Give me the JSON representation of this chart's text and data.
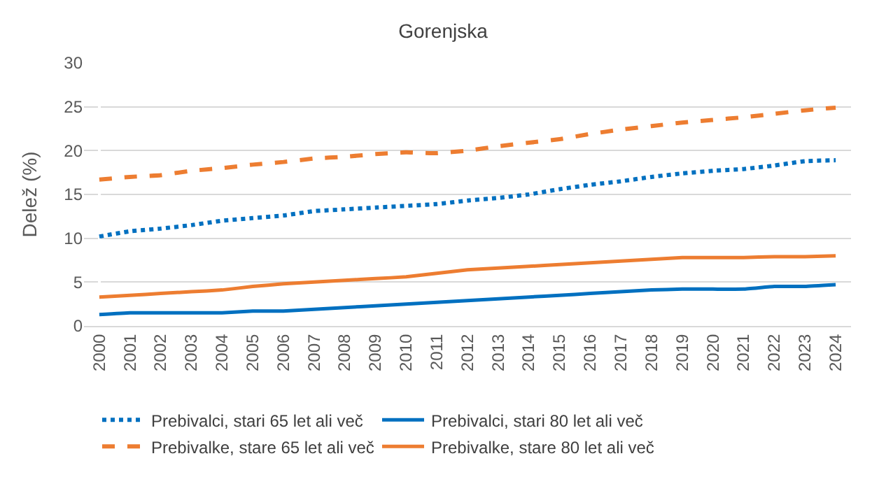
{
  "chart_data": {
    "type": "line",
    "title": "Gorenjska",
    "ylabel": "Delež (%)",
    "categories": [
      "2000",
      "2001",
      "2002",
      "2003",
      "2004",
      "2005",
      "2006",
      "2007",
      "2008",
      "2009",
      "2010",
      "2011",
      "2012",
      "2013",
      "2014",
      "2015",
      "2016",
      "2017",
      "2018",
      "2019",
      "2020",
      "2021",
      "2022",
      "2023",
      "2024"
    ],
    "ylim": [
      0,
      30
    ],
    "yticks": [
      0,
      5,
      10,
      15,
      20,
      25,
      30
    ],
    "grid": "y",
    "legend": "bottom",
    "marker": "none",
    "series": [
      {
        "name": "Prebivalci, stari 65 let ali več",
        "color": "#0070c0",
        "line_style": "dotted",
        "values": [
          10.2,
          10.8,
          11.1,
          11.5,
          12.0,
          12.3,
          12.6,
          13.1,
          13.3,
          13.5,
          13.7,
          13.9,
          14.3,
          14.6,
          15.0,
          15.6,
          16.1,
          16.5,
          17.0,
          17.4,
          17.7,
          17.9,
          18.3,
          18.8,
          18.9
        ]
      },
      {
        "name": "Prebivalci, stari 80 let ali več",
        "color": "#0070c0",
        "line_style": "solid",
        "values": [
          1.3,
          1.5,
          1.5,
          1.5,
          1.5,
          1.7,
          1.7,
          1.9,
          2.1,
          2.3,
          2.5,
          2.7,
          2.9,
          3.1,
          3.3,
          3.5,
          3.7,
          3.9,
          4.1,
          4.2,
          4.2,
          4.2,
          4.5,
          4.5,
          4.7
        ]
      },
      {
        "name": "Prebivalke, stare 65 let ali več",
        "color": "#ed7d31",
        "line_style": "dashed",
        "values": [
          16.7,
          17.0,
          17.2,
          17.7,
          18.0,
          18.4,
          18.7,
          19.1,
          19.3,
          19.6,
          19.8,
          19.7,
          20.0,
          20.5,
          20.9,
          21.3,
          21.9,
          22.4,
          22.8,
          23.2,
          23.5,
          23.8,
          24.2,
          24.6,
          24.9
        ]
      },
      {
        "name": "Prebivalke, stare 80 let ali več",
        "color": "#ed7d31",
        "line_style": "solid",
        "values": [
          3.3,
          3.5,
          3.7,
          3.9,
          4.1,
          4.5,
          4.8,
          5.0,
          5.2,
          5.4,
          5.6,
          6.0,
          6.4,
          6.6,
          6.8,
          7.0,
          7.2,
          7.4,
          7.6,
          7.8,
          7.8,
          7.8,
          7.9,
          7.9,
          8.0
        ]
      }
    ]
  }
}
